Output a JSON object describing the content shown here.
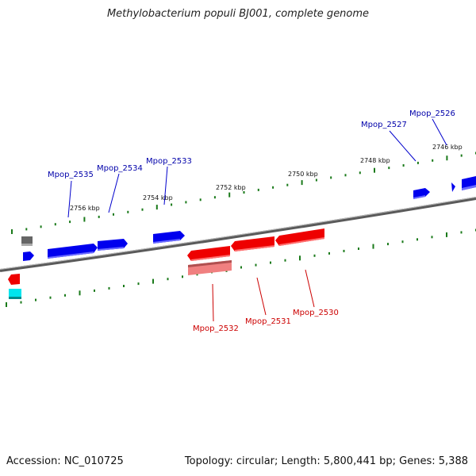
{
  "title": "Methylobacterium populi BJ001, complete genome",
  "footer": {
    "accession": "Accession: NC_010725",
    "summary": "Topology: circular; Length: 5,800,441 bp; Genes: 5,388"
  },
  "colors": {
    "forward_gene": "#0000ee",
    "reverse_gene": "#ee0000",
    "pseudo_gene": "#f08080",
    "rna_gene": "#00e5ee",
    "other_gene": "#666666",
    "tick": "#1a7a1a",
    "genome_line": "#808080"
  },
  "kbp_marks": [
    "2756 kbp",
    "2754 kbp",
    "2752 kbp",
    "2750 kbp",
    "2748 kbp",
    "2746 kbp"
  ],
  "forward_labels": [
    "Mpop_2535",
    "Mpop_2534",
    "Mpop_2533",
    "Mpop_2527",
    "Mpop_2526"
  ],
  "reverse_labels": [
    "Mpop_2532",
    "Mpop_2531",
    "Mpop_2530"
  ]
}
